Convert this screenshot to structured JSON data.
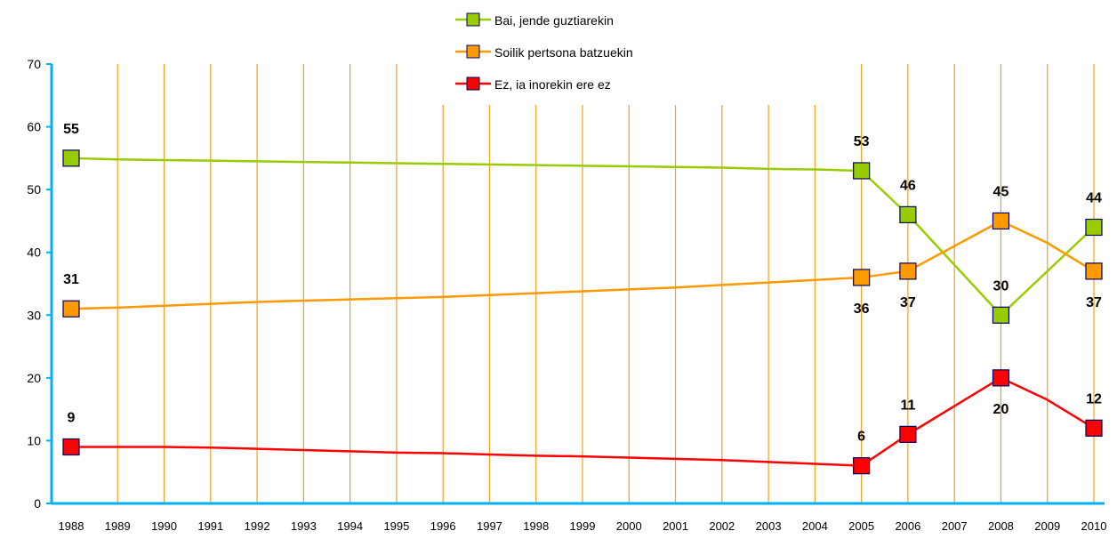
{
  "chart_data": {
    "type": "line",
    "categories": [
      "1988",
      "1989",
      "1990",
      "1991",
      "1992",
      "1993",
      "1994",
      "1995",
      "1996",
      "1997",
      "1998",
      "1999",
      "2000",
      "2001",
      "2002",
      "2003",
      "2004",
      "2005",
      "2006",
      "2007",
      "2008",
      "2009",
      "2010"
    ],
    "series": [
      {
        "name": "Bai, jende guztiarekin",
        "color": "#99cc00",
        "values": [
          55,
          54.8,
          54.7,
          54.6,
          54.5,
          54.4,
          54.3,
          54.2,
          54.1,
          54,
          53.9,
          53.8,
          53.7,
          53.6,
          53.5,
          53.3,
          53.2,
          53,
          46,
          38,
          30,
          37,
          44
        ],
        "value_labels": [
          "55",
          null,
          null,
          null,
          null,
          null,
          null,
          null,
          null,
          null,
          null,
          null,
          null,
          null,
          null,
          null,
          null,
          "53",
          "46",
          null,
          "30",
          null,
          "44"
        ]
      },
      {
        "name": "Soilik pertsona batzuekin",
        "color": "#ff9900",
        "values": [
          31,
          31.2,
          31.5,
          31.8,
          32.1,
          32.3,
          32.5,
          32.7,
          32.9,
          33.2,
          33.5,
          33.8,
          34.1,
          34.4,
          34.8,
          35.2,
          35.6,
          36,
          37,
          41,
          45,
          41.5,
          37
        ],
        "value_labels": [
          "31",
          null,
          null,
          null,
          null,
          null,
          null,
          null,
          null,
          null,
          null,
          null,
          null,
          null,
          null,
          null,
          null,
          "36",
          "37",
          null,
          "45",
          null,
          "37"
        ]
      },
      {
        "name": "Ez, ia inorekin ere ez",
        "color": "#ff0000",
        "values": [
          9,
          9,
          9,
          8.9,
          8.7,
          8.5,
          8.3,
          8.1,
          8,
          7.8,
          7.6,
          7.5,
          7.3,
          7.1,
          6.9,
          6.6,
          6.3,
          6,
          11,
          15.5,
          20,
          16.5,
          12
        ],
        "value_labels": [
          "9",
          null,
          null,
          null,
          null,
          null,
          null,
          null,
          null,
          null,
          null,
          null,
          null,
          null,
          null,
          null,
          null,
          "6",
          "11",
          null,
          "20",
          null,
          "12"
        ]
      }
    ],
    "ylim": [
      0,
      70
    ],
    "yticks": [
      0,
      10,
      20,
      30,
      40,
      50,
      60,
      70
    ],
    "grid_color": "#f0a020",
    "axis_color": "#00b0f0",
    "legend": "upper center"
  }
}
